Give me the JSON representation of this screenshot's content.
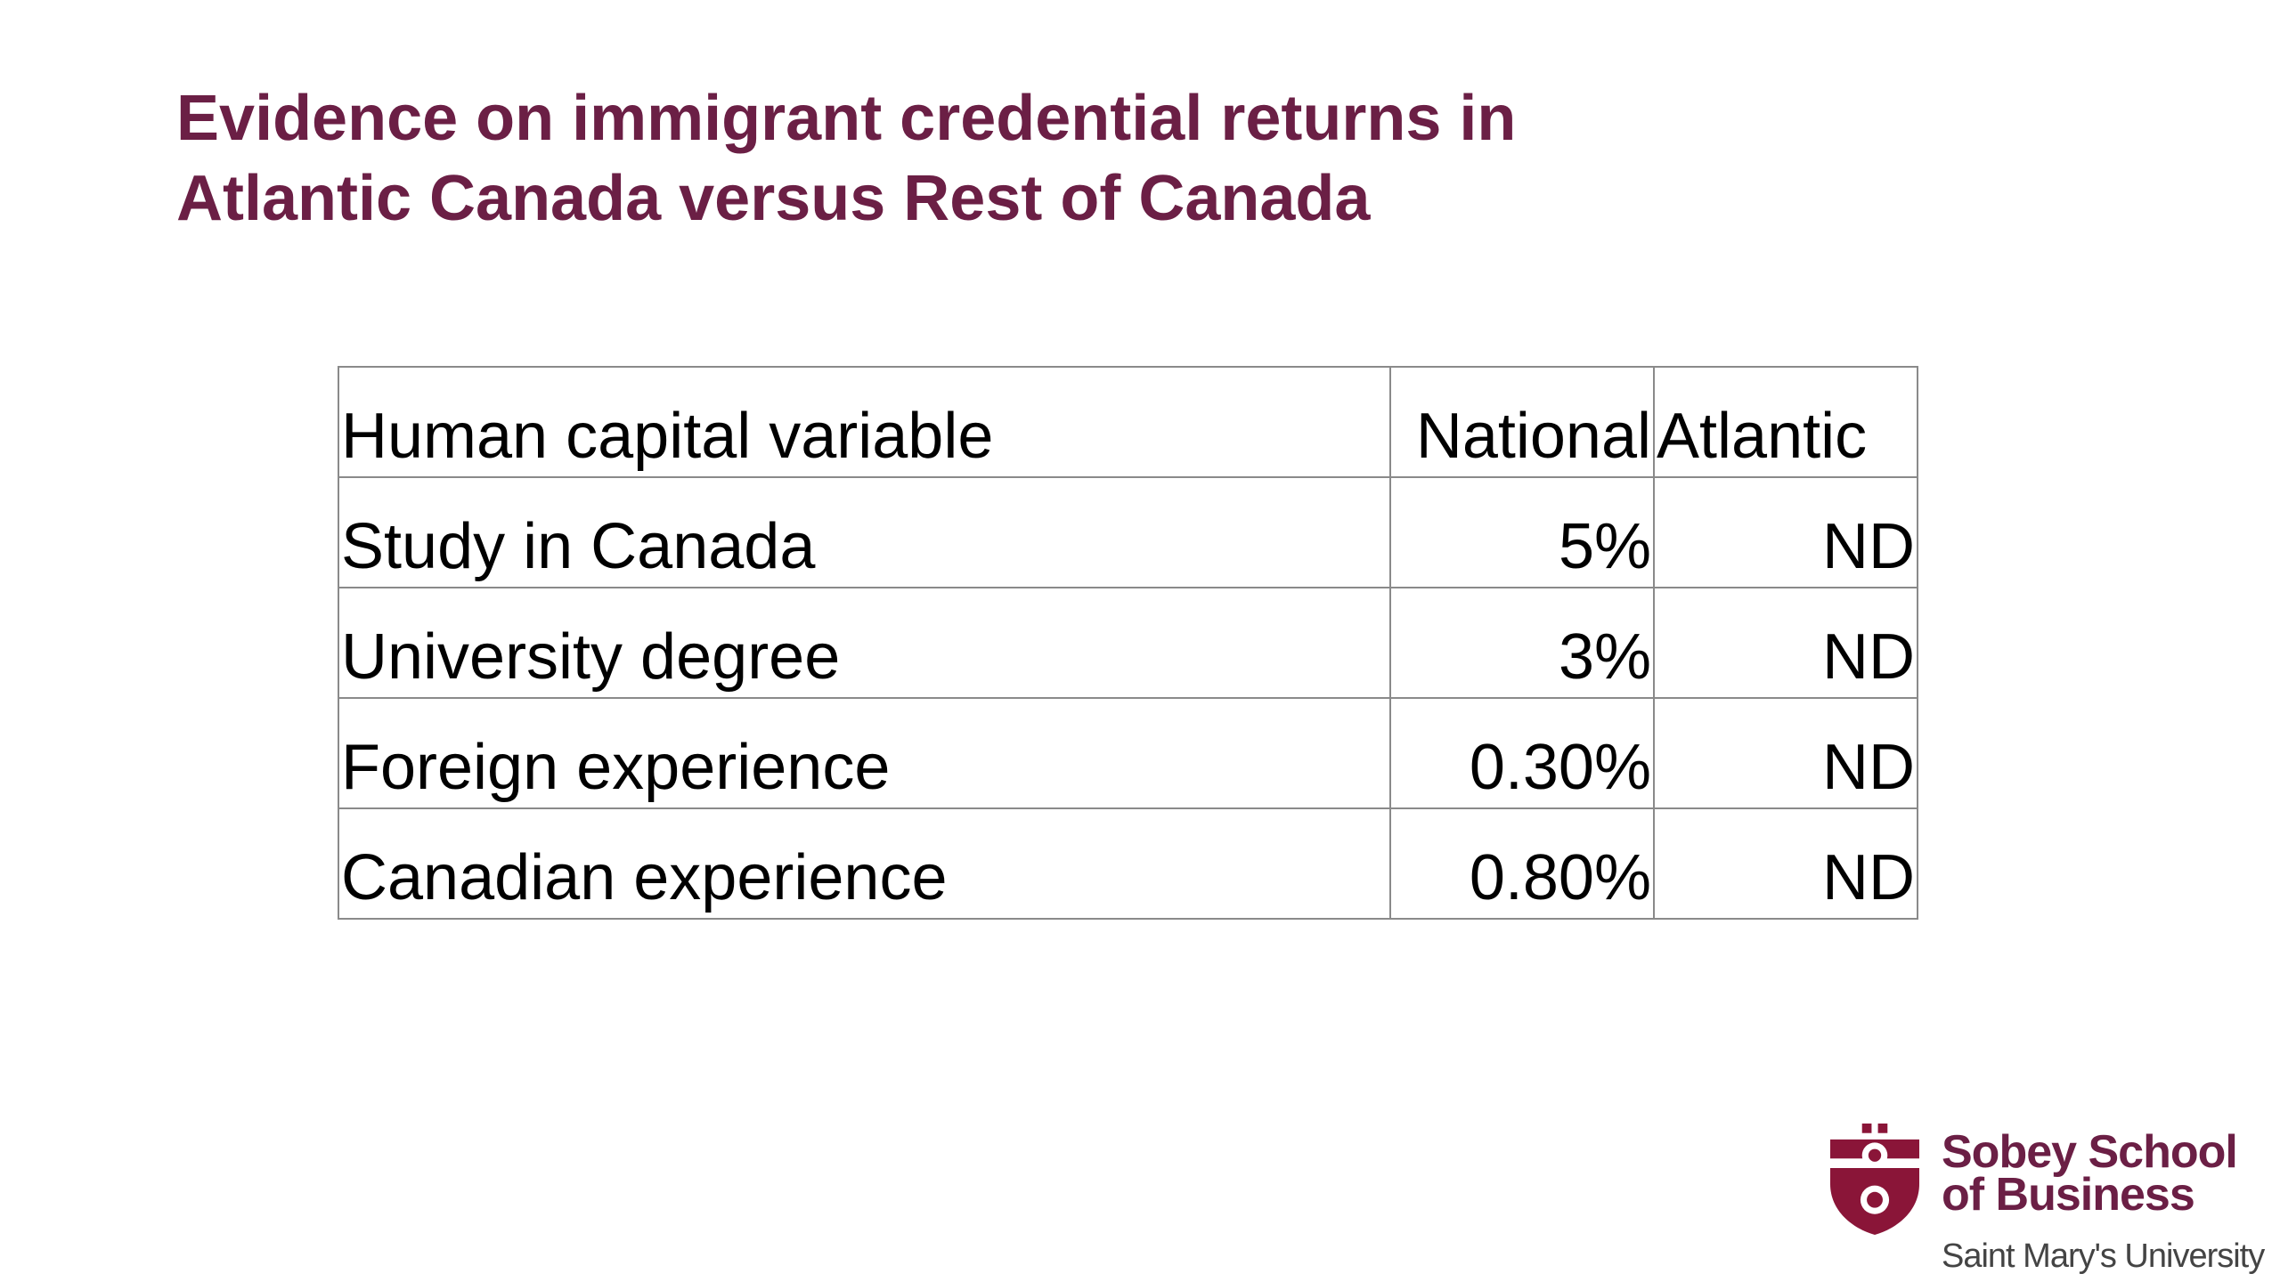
{
  "slide": {
    "title_lines": [
      "Evidence on immigrant credential returns in",
      "Atlantic Canada versus Rest of Canada"
    ],
    "table": {
      "header": [
        "Human capital variable",
        "National",
        "Atlantic"
      ],
      "rows": [
        [
          "Study in Canada",
          "5%",
          "ND"
        ],
        [
          "University degree",
          "3%",
          "ND"
        ],
        [
          "Foreign experience",
          "0.30%",
          "ND"
        ],
        [
          "Canadian experience",
          "0.80%",
          "ND"
        ]
      ]
    },
    "logo": {
      "line1": "Sobey School",
      "line2": "of Business",
      "line3": "Saint Mary's University"
    }
  }
}
